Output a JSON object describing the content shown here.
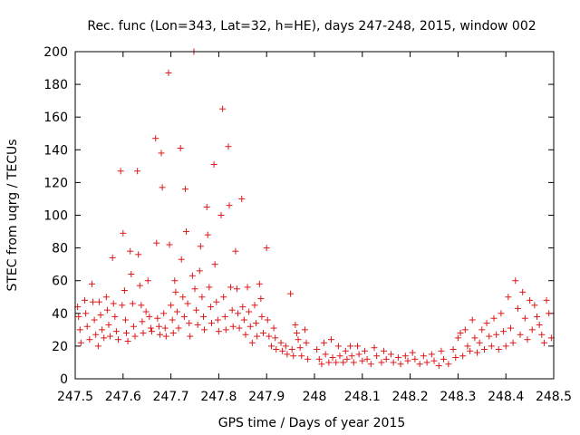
{
  "chart_data": {
    "type": "scatter",
    "title": "Rec. func (Lon=343, Lat=32, h=HE), days 247-248, 2015, window 002",
    "xlabel": "GPS time / Days of year 2015",
    "ylabel": "STEC from uqrg / TECUs",
    "xlim": [
      247.5,
      248.5
    ],
    "ylim": [
      0,
      200
    ],
    "xticks": [
      "247.5",
      "247.6",
      "247.7",
      "247.8",
      "247.9",
      "248",
      "248.1",
      "248.2",
      "248.3",
      "248.4",
      "248.5"
    ],
    "yticks": [
      "0",
      "20",
      "40",
      "60",
      "80",
      "100",
      "120",
      "140",
      "160",
      "180",
      "200"
    ],
    "grid": false,
    "marker_color": "#dd1818",
    "series": [
      {
        "points": [
          [
            247.505,
            44
          ],
          [
            247.507,
            38
          ],
          [
            247.51,
            30
          ],
          [
            247.512,
            22
          ],
          [
            247.52,
            48
          ],
          [
            247.522,
            40
          ],
          [
            247.525,
            32
          ],
          [
            247.53,
            24
          ],
          [
            247.535,
            58
          ],
          [
            247.537,
            47
          ],
          [
            247.54,
            36
          ],
          [
            247.543,
            27
          ],
          [
            247.548,
            20
          ],
          [
            247.55,
            47
          ],
          [
            247.553,
            39
          ],
          [
            247.556,
            30
          ],
          [
            247.56,
            25
          ],
          [
            247.565,
            50
          ],
          [
            247.567,
            42
          ],
          [
            247.57,
            33
          ],
          [
            247.573,
            26
          ],
          [
            247.578,
            74
          ],
          [
            247.58,
            46
          ],
          [
            247.583,
            38
          ],
          [
            247.586,
            29
          ],
          [
            247.59,
            24
          ],
          [
            247.595,
            127
          ],
          [
            247.598,
            45
          ],
          [
            247.6,
            89
          ],
          [
            247.603,
            54
          ],
          [
            247.605,
            36
          ],
          [
            247.607,
            28
          ],
          [
            247.61,
            23
          ],
          [
            247.615,
            78
          ],
          [
            247.617,
            64
          ],
          [
            247.62,
            46
          ],
          [
            247.622,
            32
          ],
          [
            247.625,
            26
          ],
          [
            247.63,
            127
          ],
          [
            247.632,
            76
          ],
          [
            247.635,
            57
          ],
          [
            247.638,
            45
          ],
          [
            247.64,
            35
          ],
          [
            247.642,
            28
          ],
          [
            247.648,
            41
          ],
          [
            247.652,
            60
          ],
          [
            247.655,
            38
          ],
          [
            247.658,
            31
          ],
          [
            247.66,
            29
          ],
          [
            247.668,
            147
          ],
          [
            247.67,
            83
          ],
          [
            247.672,
            37
          ],
          [
            247.675,
            32
          ],
          [
            247.677,
            27
          ],
          [
            247.68,
            138
          ],
          [
            247.682,
            117
          ],
          [
            247.685,
            40
          ],
          [
            247.688,
            31
          ],
          [
            247.69,
            26
          ],
          [
            247.695,
            187
          ],
          [
            247.697,
            82
          ],
          [
            247.7,
            45
          ],
          [
            247.703,
            36
          ],
          [
            247.705,
            28
          ],
          [
            247.708,
            60
          ],
          [
            247.71,
            53
          ],
          [
            247.713,
            41
          ],
          [
            247.716,
            31
          ],
          [
            247.72,
            141
          ],
          [
            247.722,
            73
          ],
          [
            247.725,
            50
          ],
          [
            247.728,
            38
          ],
          [
            247.73,
            116
          ],
          [
            247.732,
            90
          ],
          [
            247.735,
            46
          ],
          [
            247.738,
            34
          ],
          [
            247.74,
            26
          ],
          [
            247.745,
            63
          ],
          [
            247.748,
            200
          ],
          [
            247.75,
            55
          ],
          [
            247.753,
            42
          ],
          [
            247.756,
            33
          ],
          [
            247.76,
            66
          ],
          [
            247.762,
            81
          ],
          [
            247.765,
            50
          ],
          [
            247.768,
            38
          ],
          [
            247.77,
            30
          ],
          [
            247.775,
            105
          ],
          [
            247.777,
            88
          ],
          [
            247.78,
            56
          ],
          [
            247.783,
            44
          ],
          [
            247.785,
            34
          ],
          [
            247.79,
            131
          ],
          [
            247.792,
            70
          ],
          [
            247.795,
            47
          ],
          [
            247.798,
            36
          ],
          [
            247.8,
            29
          ],
          [
            247.805,
            100
          ],
          [
            247.808,
            165
          ],
          [
            247.81,
            50
          ],
          [
            247.813,
            38
          ],
          [
            247.815,
            30
          ],
          [
            247.82,
            142
          ],
          [
            247.822,
            106
          ],
          [
            247.825,
            56
          ],
          [
            247.828,
            42
          ],
          [
            247.83,
            32
          ],
          [
            247.835,
            78
          ],
          [
            247.838,
            55
          ],
          [
            247.84,
            40
          ],
          [
            247.843,
            31
          ],
          [
            247.848,
            110
          ],
          [
            247.85,
            44
          ],
          [
            247.853,
            36
          ],
          [
            247.856,
            27
          ],
          [
            247.86,
            56
          ],
          [
            247.863,
            41
          ],
          [
            247.866,
            32
          ],
          [
            247.87,
            22
          ],
          [
            247.875,
            45
          ],
          [
            247.878,
            34
          ],
          [
            247.88,
            26
          ],
          [
            247.885,
            58
          ],
          [
            247.888,
            49
          ],
          [
            247.89,
            38
          ],
          [
            247.893,
            28
          ],
          [
            247.9,
            80
          ],
          [
            247.902,
            36
          ],
          [
            247.905,
            26
          ],
          [
            247.91,
            20
          ],
          [
            247.915,
            31
          ],
          [
            247.918,
            25
          ],
          [
            247.92,
            18
          ],
          [
            247.93,
            22
          ],
          [
            247.933,
            17
          ],
          [
            247.94,
            20
          ],
          [
            247.943,
            15
          ],
          [
            247.95,
            52
          ],
          [
            247.953,
            18
          ],
          [
            247.956,
            14
          ],
          [
            247.96,
            33
          ],
          [
            247.963,
            28
          ],
          [
            247.966,
            24
          ],
          [
            247.97,
            19
          ],
          [
            247.973,
            14
          ],
          [
            247.98,
            30
          ],
          [
            247.983,
            22
          ],
          [
            247.986,
            12
          ],
          [
            248.005,
            18
          ],
          [
            248.01,
            12
          ],
          [
            248.015,
            9
          ],
          [
            248.02,
            22
          ],
          [
            248.023,
            15
          ],
          [
            248.03,
            10
          ],
          [
            248.035,
            24
          ],
          [
            248.038,
            13
          ],
          [
            248.045,
            10
          ],
          [
            248.05,
            20
          ],
          [
            248.053,
            14
          ],
          [
            248.06,
            10
          ],
          [
            248.065,
            17
          ],
          [
            248.068,
            12
          ],
          [
            248.075,
            20
          ],
          [
            248.078,
            14
          ],
          [
            248.082,
            10
          ],
          [
            248.09,
            20
          ],
          [
            248.093,
            15
          ],
          [
            248.1,
            11
          ],
          [
            248.105,
            17
          ],
          [
            248.11,
            12
          ],
          [
            248.118,
            9
          ],
          [
            248.125,
            19
          ],
          [
            248.13,
            14
          ],
          [
            248.14,
            10
          ],
          [
            248.145,
            17
          ],
          [
            248.15,
            12
          ],
          [
            248.16,
            15
          ],
          [
            248.165,
            10
          ],
          [
            248.175,
            13
          ],
          [
            248.18,
            9
          ],
          [
            248.19,
            14
          ],
          [
            248.195,
            11
          ],
          [
            248.205,
            16
          ],
          [
            248.21,
            12
          ],
          [
            248.22,
            9
          ],
          [
            248.228,
            14
          ],
          [
            248.235,
            10
          ],
          [
            248.245,
            15
          ],
          [
            248.25,
            11
          ],
          [
            248.26,
            8
          ],
          [
            248.265,
            17
          ],
          [
            248.27,
            12
          ],
          [
            248.28,
            9
          ],
          [
            248.29,
            18
          ],
          [
            248.295,
            13
          ],
          [
            248.3,
            25
          ],
          [
            248.305,
            28
          ],
          [
            248.31,
            14
          ],
          [
            248.315,
            30
          ],
          [
            248.32,
            20
          ],
          [
            248.325,
            17
          ],
          [
            248.33,
            36
          ],
          [
            248.335,
            25
          ],
          [
            248.34,
            16
          ],
          [
            248.345,
            22
          ],
          [
            248.35,
            30
          ],
          [
            248.355,
            18
          ],
          [
            248.36,
            34
          ],
          [
            248.365,
            26
          ],
          [
            248.37,
            20
          ],
          [
            248.375,
            37
          ],
          [
            248.38,
            27
          ],
          [
            248.385,
            18
          ],
          [
            248.39,
            40
          ],
          [
            248.395,
            29
          ],
          [
            248.4,
            20
          ],
          [
            248.405,
            50
          ],
          [
            248.41,
            31
          ],
          [
            248.415,
            22
          ],
          [
            248.42,
            60
          ],
          [
            248.425,
            43
          ],
          [
            248.43,
            27
          ],
          [
            248.435,
            53
          ],
          [
            248.44,
            37
          ],
          [
            248.445,
            24
          ],
          [
            248.45,
            48
          ],
          [
            248.455,
            30
          ],
          [
            248.46,
            45
          ],
          [
            248.465,
            38
          ],
          [
            248.47,
            33
          ],
          [
            248.475,
            27
          ],
          [
            248.48,
            22
          ],
          [
            248.485,
            48
          ],
          [
            248.49,
            40
          ],
          [
            248.495,
            25
          ]
        ]
      }
    ]
  }
}
